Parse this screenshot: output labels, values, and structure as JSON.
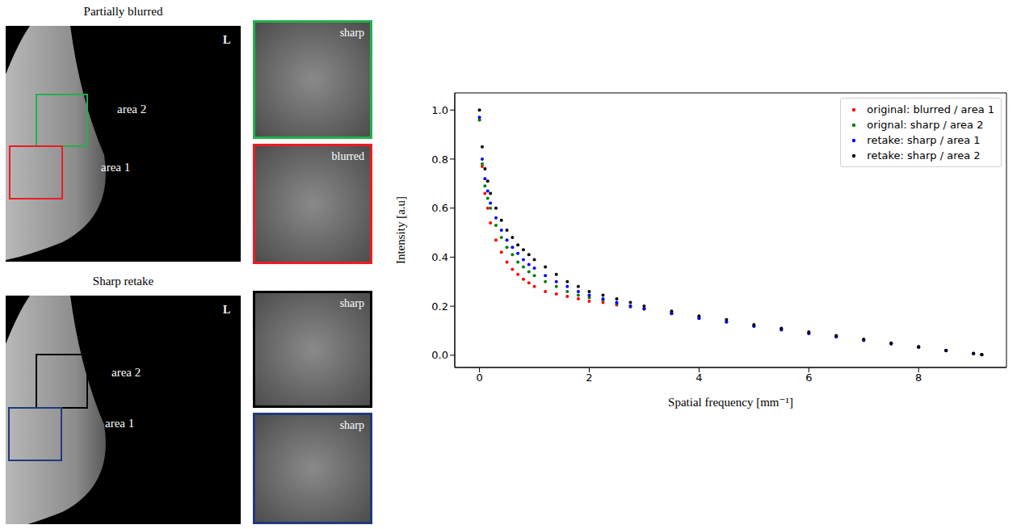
{
  "panels": [
    {
      "title": "Partially blurred",
      "side": "L",
      "areas": [
        {
          "label": "area 2",
          "color": "#22b14c",
          "crop_label": "sharp"
        },
        {
          "label": "area 1",
          "color": "#ed1c24",
          "crop_label": "blurred"
        }
      ]
    },
    {
      "title": "Sharp retake",
      "side": "L",
      "areas": [
        {
          "label": "area 2",
          "color": "#000000",
          "crop_label": "sharp"
        },
        {
          "label": "area 1",
          "color": "#1f3a7a",
          "crop_label": "sharp"
        }
      ]
    }
  ],
  "chart_data": {
    "type": "scatter",
    "x_label": "Spatial frequency [mm⁻¹]",
    "y_label": "Intensity [a.u]",
    "xlim": [
      -0.45,
      9.6
    ],
    "ylim": [
      -0.05,
      1.07
    ],
    "xticks": [
      0,
      2,
      4,
      6,
      8
    ],
    "yticks": [
      {
        "value": 0,
        "label": "0.0"
      },
      {
        "value": 0.2,
        "label": "0.2"
      },
      {
        "value": 0.4,
        "label": "0.4"
      },
      {
        "value": 0.6,
        "label": "0.6"
      },
      {
        "value": 0.8,
        "label": "0.8"
      },
      {
        "value": 1.0,
        "label": "1.0"
      }
    ],
    "grid": false,
    "legend": "upper right",
    "marker": "circle",
    "x": [
      0,
      0.05,
      0.1,
      0.15,
      0.2,
      0.3,
      0.4,
      0.5,
      0.6,
      0.7,
      0.8,
      0.9,
      1.0,
      1.2,
      1.4,
      1.6,
      1.8,
      2.0,
      2.25,
      2.5,
      2.75,
      3.0,
      3.5,
      4.0,
      4.5,
      5.0,
      5.5,
      6.0,
      6.5,
      7.0,
      7.5,
      8.0,
      8.5,
      9.0,
      9.15
    ],
    "series": [
      {
        "name": "original: blurred / area 1",
        "color": "#ff0000",
        "values": [
          0.96,
          0.77,
          0.66,
          0.6,
          0.54,
          0.47,
          0.42,
          0.38,
          0.35,
          0.33,
          0.31,
          0.295,
          0.28,
          0.26,
          0.25,
          0.24,
          0.23,
          0.22,
          0.215,
          0.205,
          0.197,
          0.188,
          0.17,
          0.152,
          0.136,
          0.12,
          0.105,
          0.09,
          0.076,
          0.062,
          0.047,
          0.033,
          0.019,
          0.007,
          0.002
        ]
      },
      {
        "name": "orignal: sharp / area 2",
        "color": "#008000",
        "values": [
          0.96,
          0.78,
          0.69,
          0.64,
          0.6,
          0.53,
          0.48,
          0.44,
          0.41,
          0.38,
          0.36,
          0.34,
          0.325,
          0.3,
          0.28,
          0.26,
          0.245,
          0.235,
          0.225,
          0.21,
          0.2,
          0.19,
          0.172,
          0.152,
          0.137,
          0.12,
          0.105,
          0.09,
          0.076,
          0.062,
          0.047,
          0.033,
          0.019,
          0.007,
          0.002
        ]
      },
      {
        "name": "retake: sharp / area 1",
        "color": "#0000ff",
        "values": [
          0.97,
          0.8,
          0.72,
          0.67,
          0.62,
          0.56,
          0.51,
          0.47,
          0.44,
          0.415,
          0.39,
          0.37,
          0.355,
          0.325,
          0.3,
          0.28,
          0.26,
          0.245,
          0.23,
          0.215,
          0.2,
          0.19,
          0.17,
          0.15,
          0.135,
          0.118,
          0.103,
          0.088,
          0.075,
          0.06,
          0.046,
          0.032,
          0.018,
          0.006,
          0.002
        ]
      },
      {
        "name": "retake: sharp / area 2",
        "color": "#000000",
        "values": [
          1.0,
          0.85,
          0.76,
          0.71,
          0.66,
          0.6,
          0.55,
          0.51,
          0.48,
          0.45,
          0.43,
          0.41,
          0.39,
          0.36,
          0.33,
          0.3,
          0.28,
          0.26,
          0.245,
          0.23,
          0.215,
          0.2,
          0.18,
          0.16,
          0.145,
          0.125,
          0.11,
          0.095,
          0.08,
          0.065,
          0.05,
          0.035,
          0.02,
          0.008,
          0.003
        ]
      }
    ]
  }
}
